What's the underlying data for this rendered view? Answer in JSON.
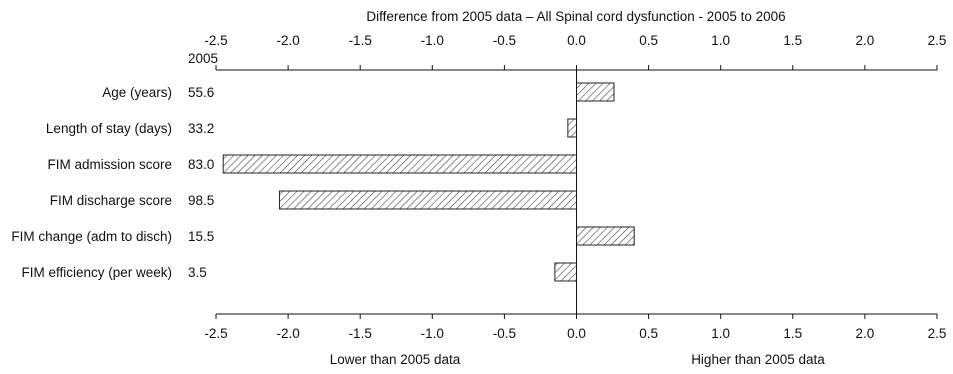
{
  "chart_data": {
    "type": "bar",
    "orientation": "horizontal",
    "title": "Difference from 2005 data – All Spinal cord dysfunction - 2005 to 2006",
    "value_column_header": "2005",
    "categories": [
      "Age (years)",
      "Length of stay (days)",
      "FIM admission score",
      "FIM discharge score",
      "FIM change (adm to disch)",
      "FIM efficiency (per week)"
    ],
    "baseline_values": [
      "55.6",
      "33.2",
      "83.0",
      "98.5",
      "15.5",
      "3.5"
    ],
    "values": [
      0.26,
      -0.06,
      -2.45,
      -2.06,
      0.4,
      -0.15
    ],
    "xlim": [
      -2.5,
      2.5
    ],
    "xticks": [
      -2.5,
      -2.0,
      -1.5,
      -1.0,
      -0.5,
      0.0,
      0.5,
      1.0,
      1.5,
      2.0,
      2.5
    ],
    "xtick_labels": [
      "-2.5",
      "-2.0",
      "-1.5",
      "-1.0",
      "-0.5",
      "0.0",
      "0.5",
      "1.0",
      "1.5",
      "2.0",
      "2.5"
    ],
    "lower_label": "Lower than 2005 data",
    "higher_label": "Higher than 2005 data",
    "bar_fill": "hatched",
    "colors": {
      "axis": "#111111",
      "bar_stroke": "#222222",
      "hatch": "#333333",
      "bar_bg": "#ffffff"
    }
  }
}
